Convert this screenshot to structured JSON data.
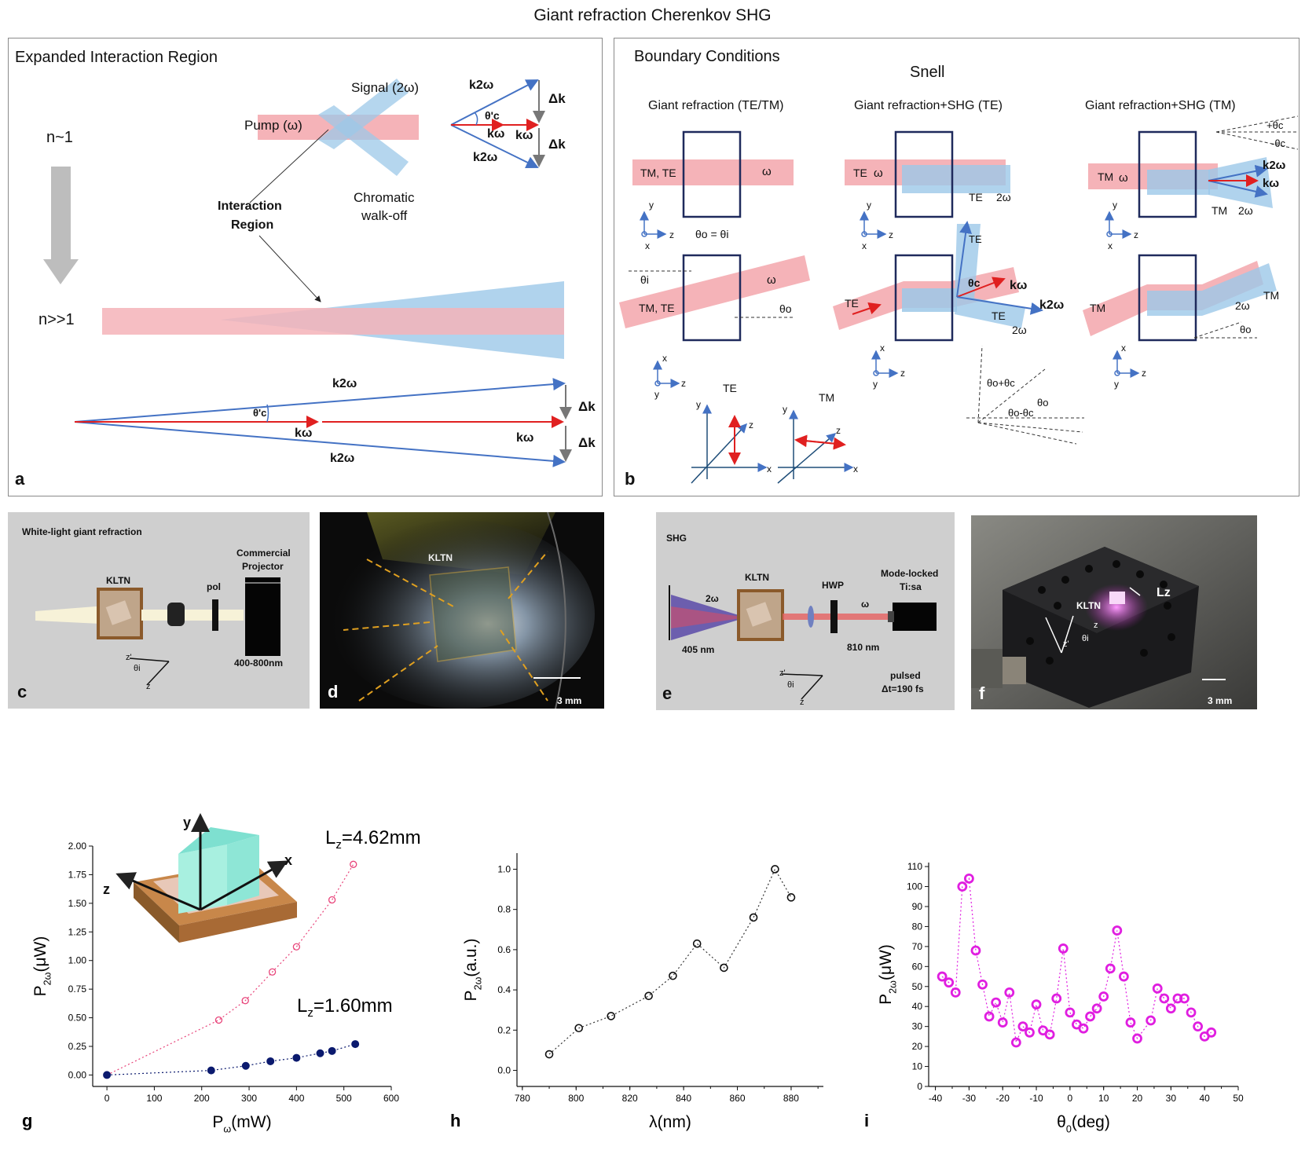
{
  "figure": {
    "title": "Giant refraction Cherenkov SHG"
  },
  "panel_a": {
    "label": "a",
    "heading": "Expanded Interaction Region",
    "signal": "Signal (2ω)",
    "pump": "Pump (ω)",
    "chromatic": "Chromatic",
    "walkoff": "walk-off",
    "interaction": "Interaction",
    "region": "Region",
    "n_low": "n~1",
    "n_high": "n>>1",
    "theta_c": "θ'c",
    "k2w": "k2ω",
    "kw": "kω",
    "dk": "Δk"
  },
  "panel_b": {
    "label": "b",
    "heading": "Boundary Conditions",
    "snell": "Snell",
    "col1": "Giant refraction (TE/TM)",
    "col2": "Giant refraction+SHG (TE)",
    "col3": "Giant refraction+SHG (TM)",
    "tmte": "TM, TE",
    "te": "TE",
    "tm": "TM",
    "omega": "ω",
    "two_omega": "2ω",
    "theta_eq": "θo = θi",
    "theta_i": "θi",
    "theta_o": "θo",
    "theta_c": "θc",
    "plus_theta_c": "+θc",
    "minus_theta_c": "-θc",
    "theta_o_plus": "θo+θc",
    "theta_o_minus": "θo-θc",
    "k2w": "k2ω",
    "kw": "kω",
    "axis_x": "x",
    "axis_y": "y",
    "axis_z": "z"
  },
  "panel_c": {
    "label": "c",
    "heading": "White-light giant refraction",
    "kltn": "KLTN",
    "pol": "pol",
    "projector1": "Commercial",
    "projector2": "Projector",
    "range": "400-800nm",
    "z_prime": "z'",
    "theta_i": "θi",
    "z": "z"
  },
  "panel_d": {
    "label": "d",
    "kltn": "KLTN",
    "scale": "3 mm"
  },
  "panel_e": {
    "label": "e",
    "heading": "SHG",
    "two_omega": "2ω",
    "kltn": "KLTN",
    "hwp": "HWP",
    "omega": "ω",
    "laser1": "Mode-locked",
    "laser2": "Ti:sa",
    "wl405": "405 nm",
    "wl810": "810 nm",
    "pulsed": "pulsed",
    "dt": "Δt=190 fs",
    "z_prime": "z'",
    "theta_i": "θi",
    "z": "z"
  },
  "panel_f": {
    "label": "f",
    "kltn": "KLTN",
    "lz": "Lz",
    "z_prime": "z'",
    "theta_i": "θi",
    "z": "z",
    "scale": "3 mm"
  },
  "colors": {
    "pump": "#f5b3b8",
    "signal": "#9cc8e8",
    "kvec": "#4472c4",
    "kred": "#e02020",
    "pink": "#e8447a",
    "navy": "#0b1a6e",
    "magenta": "#e01ee0"
  },
  "chart_data": [
    {
      "id": "g",
      "type": "scatter",
      "label": "g",
      "xlabel": "Pω(mW)",
      "ylabel": "P2ω(μW)",
      "xlim": [
        -30,
        600
      ],
      "ylim": [
        -0.1,
        2.0
      ],
      "xticks": [
        "0",
        "100",
        "200",
        "300",
        "400",
        "500",
        "600"
      ],
      "yticks": [
        "0.00",
        "0.25",
        "0.50",
        "0.75",
        "1.00",
        "1.25",
        "1.50",
        "1.75",
        "2.00"
      ],
      "series": [
        {
          "name": "Lz=4.62mm",
          "x": [
            0,
            236,
            292,
            349,
            400,
            475,
            520
          ],
          "y": [
            0.0,
            0.48,
            0.65,
            0.9,
            1.12,
            1.53,
            1.84
          ]
        },
        {
          "name": "Lz=1.60mm",
          "x": [
            0,
            220,
            293,
            345,
            400,
            450,
            475,
            524
          ],
          "y": [
            0.0,
            0.04,
            0.08,
            0.12,
            0.15,
            0.19,
            0.21,
            0.27
          ]
        }
      ],
      "inset_axes": [
        "y",
        "x",
        "z"
      ]
    },
    {
      "id": "h",
      "type": "scatter",
      "label": "h",
      "xlabel": "λ(nm)",
      "ylabel": "P2ω(a.u.)",
      "xlim": [
        778,
        892
      ],
      "ylim": [
        -0.08,
        1.08
      ],
      "xticks": [
        "780",
        "800",
        "820",
        "840",
        "860",
        "880"
      ],
      "yticks": [
        "0.0",
        "0.2",
        "0.4",
        "0.6",
        "0.8",
        "1.0"
      ],
      "series": [
        {
          "name": "P2ω",
          "x": [
            790,
            801,
            813,
            827,
            836,
            845,
            855,
            866,
            874,
            880
          ],
          "y": [
            0.08,
            0.21,
            0.27,
            0.37,
            0.47,
            0.63,
            0.51,
            0.76,
            1.0,
            0.86
          ]
        }
      ]
    },
    {
      "id": "i",
      "type": "scatter",
      "label": "i",
      "xlabel": "θ0(deg)",
      "ylabel": "P2ω(μW)",
      "xlim": [
        -42,
        50
      ],
      "ylim": [
        0,
        112
      ],
      "xticks": [
        "-40",
        "-30",
        "-20",
        "-10",
        "0",
        "10",
        "20",
        "30",
        "40",
        "50"
      ],
      "yticks": [
        "0",
        "10",
        "20",
        "30",
        "40",
        "50",
        "60",
        "70",
        "80",
        "90",
        "100",
        "110"
      ],
      "series": [
        {
          "name": "P2ω",
          "x": [
            -38,
            -36,
            -34,
            -32,
            -30,
            -28,
            -26,
            -24,
            -22,
            -20,
            -18,
            -16,
            -14,
            -12,
            -10,
            -8,
            -6,
            -4,
            -2,
            0,
            2,
            4,
            6,
            8,
            10,
            12,
            14,
            16,
            18,
            20,
            24,
            26,
            28,
            30,
            32,
            34,
            36,
            38,
            40,
            42
          ],
          "y": [
            55,
            52,
            47,
            100,
            104,
            68,
            51,
            35,
            42,
            32,
            47,
            22,
            30,
            27,
            41,
            28,
            26,
            44,
            69,
            37,
            31,
            29,
            35,
            39,
            45,
            59,
            78,
            55,
            32,
            24,
            33,
            49,
            44,
            39,
            44,
            44,
            37,
            30,
            25,
            27
          ]
        }
      ]
    }
  ]
}
